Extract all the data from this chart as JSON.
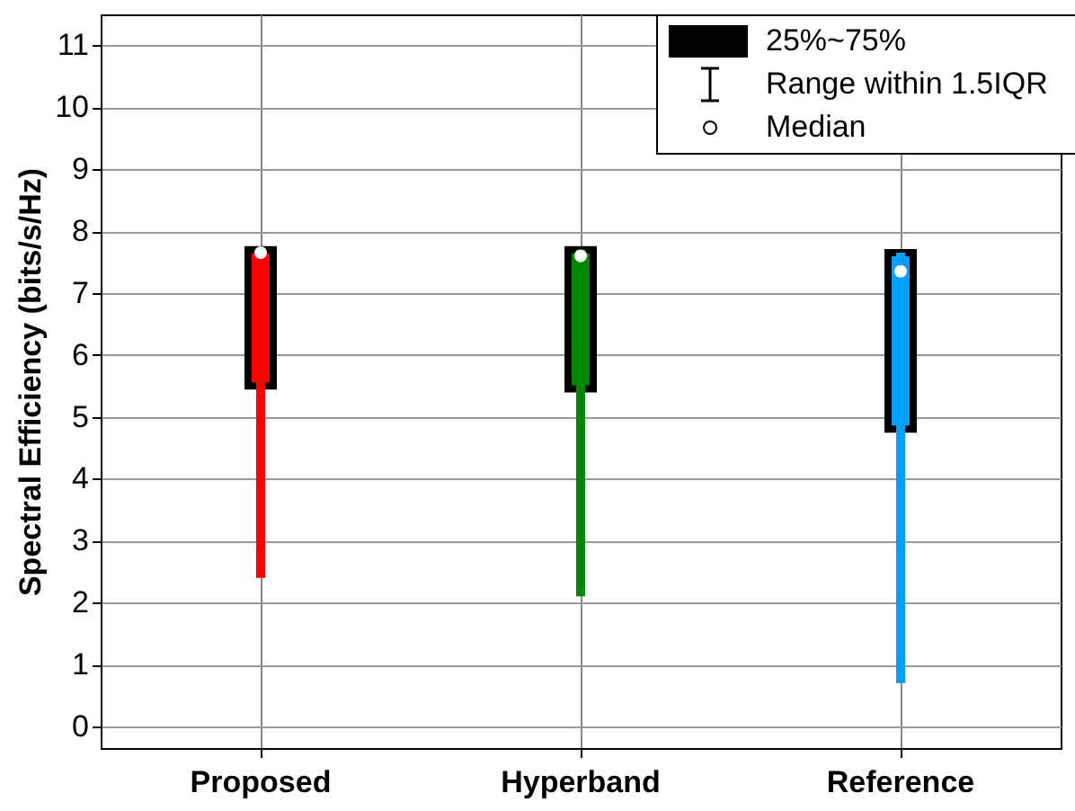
{
  "chart_data": {
    "type": "box",
    "ylabel": "Spectral Efficiency (bits/s/Hz)",
    "categories": [
      "Proposed",
      "Hyperband",
      "Reference"
    ],
    "boxes": [
      {
        "low": 2.4,
        "q1": 5.5,
        "median": 7.65,
        "q3": 7.7,
        "high": 7.7
      },
      {
        "low": 2.1,
        "q1": 5.45,
        "median": 7.6,
        "q3": 7.7,
        "high": 7.7
      },
      {
        "low": 0.7,
        "q1": 4.8,
        "median": 7.35,
        "q3": 7.65,
        "high": 7.65
      }
    ],
    "colors": [
      "#ff0000",
      "#008800",
      "#00a0ff"
    ],
    "ylim": [
      -0.35,
      11.5
    ],
    "yticks": [
      0,
      1,
      2,
      3,
      4,
      5,
      6,
      7,
      8,
      9,
      10,
      11
    ],
    "grid": true,
    "annotations": [
      "25%~75%",
      "Range within 1.5IQR",
      "Median"
    ]
  }
}
